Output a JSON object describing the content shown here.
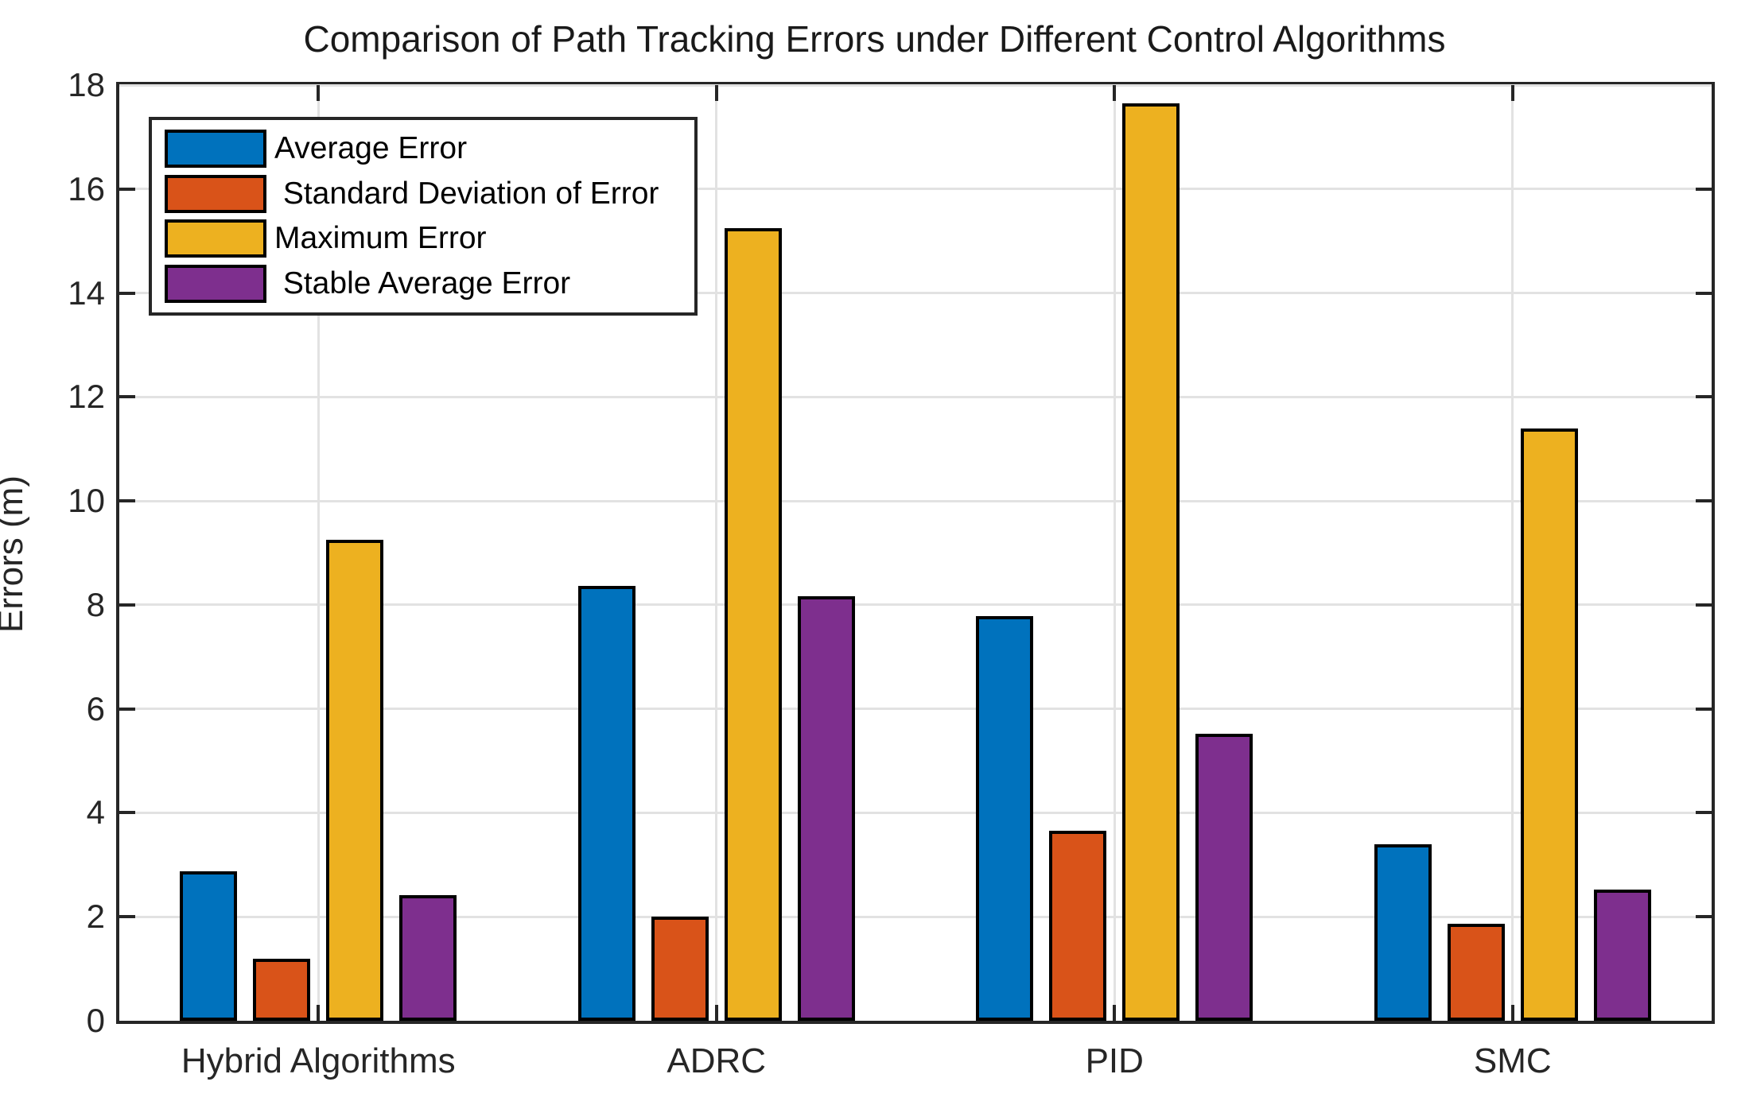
{
  "figure": {
    "title": "Comparison of Path Tracking Errors under Different Control Algorithms",
    "ylabel": "Errors (m)"
  },
  "chart_data": {
    "type": "bar",
    "title": "Comparison of Path Tracking Errors under Different Control Algorithms",
    "xlabel": "",
    "ylabel": "Errors (m)",
    "categories": [
      "Hybrid Algorithms",
      "ADRC",
      "PID",
      "SMC"
    ],
    "series": [
      {
        "name": "Average Error",
        "color": "#0072BD",
        "values": [
          2.88,
          8.37,
          7.78,
          3.4
        ]
      },
      {
        "name": " Standard Deviation of Error",
        "color": "#D95319",
        "values": [
          1.19,
          2.0,
          3.65,
          1.87
        ]
      },
      {
        "name": "Maximum Error",
        "color": "#EDB120",
        "values": [
          9.25,
          15.25,
          17.65,
          11.4
        ]
      },
      {
        "name": " Stable Average Error",
        "color": "#7E2F8E",
        "values": [
          2.42,
          8.17,
          5.52,
          2.53
        ]
      }
    ],
    "ylim": [
      0,
      18
    ],
    "yticks": [
      0,
      2,
      4,
      6,
      8,
      10,
      12,
      14,
      16,
      18
    ],
    "grid": true,
    "grid_vertical_at_categories": true,
    "legend_position": "top-left",
    "legend_entries": [
      "Average Error",
      " Standard Deviation of Error",
      "Maximum Error",
      " Stable Average Error"
    ]
  },
  "style": {
    "axis_color": "#262626",
    "grid_color": "#e2e2e2",
    "bar_edge_color": "#000000",
    "background": "#ffffff"
  }
}
